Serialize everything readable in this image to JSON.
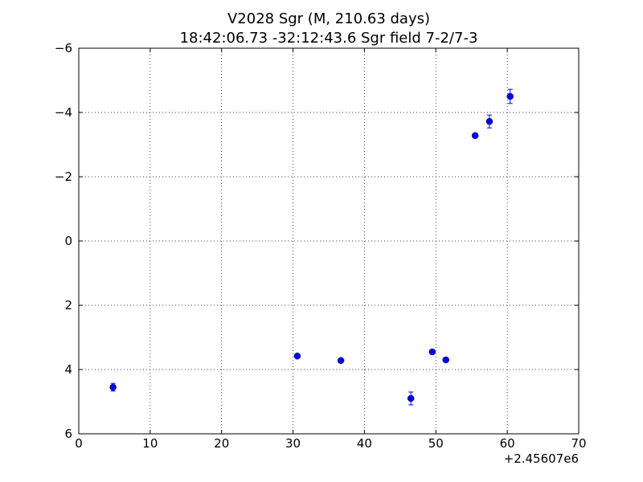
{
  "chart_data": {
    "type": "scatter",
    "title": "V2028 Sgr  (M, 210.63 days)",
    "subtitle": "18:42:06.73 -32:12:43.6 Sgr field 7-2/7-3",
    "x_offset_label": "+2.45607e6",
    "x": [
      4.8,
      30.6,
      36.7,
      46.5,
      49.5,
      51.4,
      55.5,
      57.5,
      60.4
    ],
    "series": [
      {
        "color": "#0000ff",
        "values": [
          4.55,
          3.58,
          3.72,
          4.9,
          3.45,
          3.7,
          -3.28,
          -3.72,
          -4.5
        ],
        "errors": [
          0.12,
          0.05,
          0.05,
          0.2,
          0.04,
          0.06,
          0.05,
          0.2,
          0.22
        ]
      }
    ],
    "xlim": [
      0,
      70
    ],
    "xticks": [
      0,
      10,
      20,
      30,
      40,
      50,
      60,
      70
    ],
    "ylim": [
      6,
      -6
    ],
    "yticks": [
      {
        "value": -6,
        "label": "−6"
      },
      {
        "value": -4,
        "label": "−4"
      },
      {
        "value": -2,
        "label": "−2"
      },
      0,
      2,
      4,
      6
    ],
    "grid": true
  }
}
